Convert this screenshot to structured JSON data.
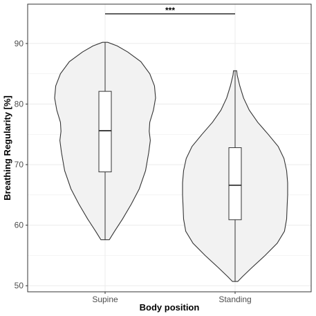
{
  "chart_data": {
    "type": "violin",
    "xlabel": "Body position",
    "ylabel": "Breathing Regularity [%]",
    "categories": [
      "Supine",
      "Standing"
    ],
    "yticks": [
      50,
      60,
      70,
      80,
      90
    ],
    "ylim": [
      49,
      96.5
    ],
    "grid": true,
    "colors": {
      "violin_fill": "#f2f2f2",
      "outline": "#333333",
      "box_fill": "#ffffff",
      "grid": "#ebebeb",
      "panel_border": "#333333"
    },
    "series": [
      {
        "category": "Supine",
        "min": 57.6,
        "q1": 68.8,
        "median": 75.6,
        "q3": 82.1,
        "max": 90.2,
        "density": [
          [
            57.6,
            0.08
          ],
          [
            59.0,
            0.18
          ],
          [
            61.0,
            0.33
          ],
          [
            63.5,
            0.5
          ],
          [
            66.0,
            0.65
          ],
          [
            69.0,
            0.77
          ],
          [
            72.0,
            0.83
          ],
          [
            74.0,
            0.86
          ],
          [
            75.5,
            0.84
          ],
          [
            77.0,
            0.85
          ],
          [
            79.0,
            0.92
          ],
          [
            81.0,
            0.96
          ],
          [
            83.0,
            0.94
          ],
          [
            85.0,
            0.85
          ],
          [
            87.0,
            0.68
          ],
          [
            88.6,
            0.43
          ],
          [
            89.6,
            0.23
          ],
          [
            90.2,
            0.05
          ]
        ]
      },
      {
        "category": "Standing",
        "min": 50.7,
        "q1": 60.9,
        "median": 66.6,
        "q3": 72.8,
        "max": 85.5,
        "density": [
          [
            50.7,
            0.05
          ],
          [
            51.5,
            0.14
          ],
          [
            53.0,
            0.32
          ],
          [
            55.0,
            0.57
          ],
          [
            57.0,
            0.8
          ],
          [
            59.0,
            0.94
          ],
          [
            61.0,
            0.98
          ],
          [
            63.0,
            0.99
          ],
          [
            65.0,
            1.0
          ],
          [
            67.0,
            1.0
          ],
          [
            69.0,
            0.98
          ],
          [
            71.0,
            0.93
          ],
          [
            73.0,
            0.82
          ],
          [
            75.0,
            0.63
          ],
          [
            77.0,
            0.43
          ],
          [
            79.0,
            0.27
          ],
          [
            81.0,
            0.16
          ],
          [
            83.0,
            0.09
          ],
          [
            84.8,
            0.04
          ],
          [
            85.5,
            0.03
          ]
        ]
      }
    ],
    "annotations": [
      {
        "text": "***",
        "from": "Supine",
        "to": "Standing",
        "y": 94.9
      }
    ]
  }
}
